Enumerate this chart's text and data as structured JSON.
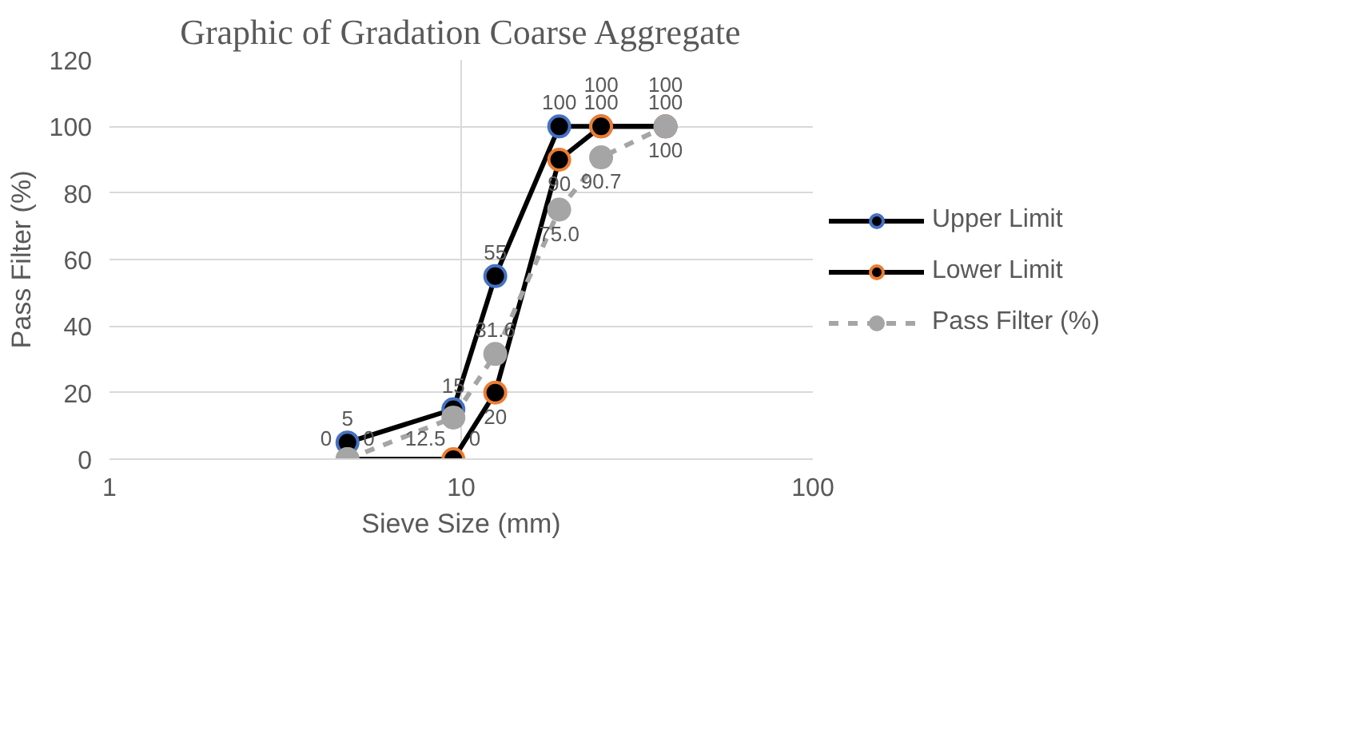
{
  "chart_data": {
    "type": "line",
    "title": "Graphic of Gradation Coarse Aggregate",
    "xlabel": "Sieve Size (mm)",
    "ylabel": "Pass Filter (%)",
    "log": "x",
    "xlim": [
      1,
      100
    ],
    "xticks": [
      1,
      10,
      100
    ],
    "ylim": [
      0,
      120
    ],
    "yticks": [
      0,
      20,
      40,
      60,
      80,
      100,
      120
    ],
    "grid": true,
    "legend": "right",
    "marker": "circle",
    "data_labels": true,
    "x": [
      4.75,
      9.5,
      12.5,
      19,
      25,
      38.1
    ],
    "series": [
      {
        "name": "Upper Limit",
        "color": "#000000",
        "colors": [
          "#4472c4",
          "#4472c4",
          "#4472c4",
          "#4472c4",
          "#4472c4",
          "#4472c4"
        ],
        "line_style": "solid",
        "values": [
          5,
          15,
          55,
          100,
          100,
          100
        ]
      },
      {
        "name": "Lower Limit",
        "color": "#000000",
        "colors": [
          "#ed7d31",
          "#ed7d31",
          "#ed7d31",
          "#ed7d31",
          "#ed7d31",
          "#ed7d31"
        ],
        "line_style": "solid",
        "values": [
          0,
          0,
          20,
          90,
          100,
          100
        ]
      },
      {
        "name": "Pass Filter (%)",
        "color": "#a5a5a5",
        "colors": [
          "#a5a5a5",
          "#a5a5a5",
          "#a5a5a5",
          "#a5a5a5",
          "#a5a5a5",
          "#a5a5a5"
        ],
        "line_style": "dashed",
        "values": [
          0,
          12.5,
          31.6,
          75.0,
          90.7,
          100
        ],
        "value_labels": [
          "0",
          "12.5",
          "31.6",
          "75.0",
          "90.7",
          "100"
        ]
      }
    ]
  }
}
